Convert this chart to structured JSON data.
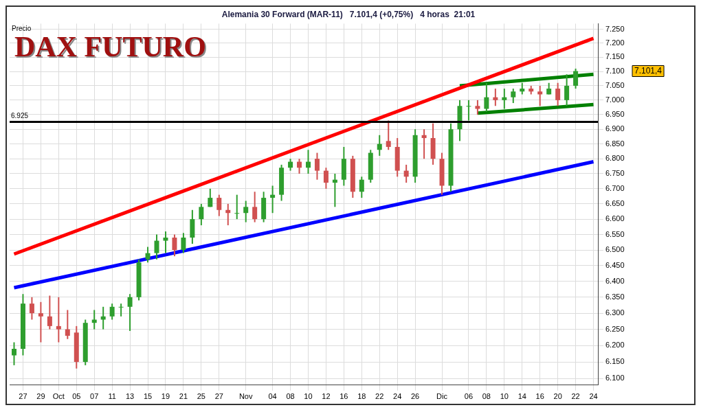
{
  "chart_data": {
    "type": "candlestick",
    "title": "Alemania 30 Forward (MAR-11)   7.101,4 (+0,75%)   4 horas  21:01",
    "subtitle": "DAX FUTURO",
    "ylabel": "Precio",
    "categories": [
      null,
      "27",
      null,
      "29",
      null,
      "Oct",
      null,
      "05",
      null,
      "07",
      null,
      "11",
      null,
      "13",
      null,
      "15",
      null,
      "19",
      null,
      "21",
      null,
      "25",
      null,
      "27",
      null,
      null,
      "Nov",
      null,
      null,
      "04",
      null,
      "08",
      null,
      "10",
      null,
      "12",
      null,
      "16",
      null,
      "18",
      null,
      "22",
      null,
      "24",
      null,
      "26",
      null,
      null,
      "Dic",
      null,
      null,
      "06",
      null,
      "08",
      null,
      "10",
      null,
      "14",
      null,
      "16",
      null,
      "20",
      null,
      "22",
      null,
      "24"
    ],
    "ohlc": [
      [
        6170,
        6210,
        6140,
        6190
      ],
      [
        6190,
        6360,
        6170,
        6330
      ],
      [
        6330,
        6350,
        6280,
        6300
      ],
      [
        6300,
        6335,
        6210,
        6290
      ],
      [
        6290,
        6355,
        6250,
        6260
      ],
      [
        6260,
        6350,
        6210,
        6250
      ],
      [
        6250,
        6310,
        6220,
        6230
      ],
      [
        6240,
        6260,
        6130,
        6150
      ],
      [
        6150,
        6280,
        6140,
        6270
      ],
      [
        6270,
        6310,
        6250,
        6280
      ],
      [
        6280,
        6320,
        6250,
        6290
      ],
      [
        6290,
        6330,
        6280,
        6320
      ],
      [
        6320,
        6330,
        6290,
        6320
      ],
      [
        6320,
        6360,
        6245,
        6350
      ],
      [
        6350,
        6470,
        6340,
        6460
      ],
      [
        6470,
        6510,
        6460,
        6490
      ],
      [
        6490,
        6550,
        6470,
        6530
      ],
      [
        6530,
        6560,
        6490,
        6540
      ],
      [
        6540,
        6550,
        6480,
        6500
      ],
      [
        6500,
        6555,
        6490,
        6540
      ],
      [
        6540,
        6630,
        6520,
        6600
      ],
      [
        6600,
        6650,
        6580,
        6640
      ],
      [
        6640,
        6700,
        6640,
        6670
      ],
      [
        6670,
        6680,
        6610,
        6630
      ],
      [
        6630,
        6650,
        6580,
        6620
      ],
      [
        6620,
        6680,
        6600,
        6620
      ],
      [
        6620,
        6660,
        6590,
        6640
      ],
      [
        6640,
        6690,
        6590,
        6600
      ],
      [
        6600,
        6690,
        6590,
        6670
      ],
      [
        6670,
        6710,
        6620,
        6680
      ],
      [
        6680,
        6780,
        6660,
        6770
      ],
      [
        6770,
        6800,
        6760,
        6790
      ],
      [
        6790,
        6800,
        6750,
        6770
      ],
      [
        6770,
        6830,
        6750,
        6790
      ],
      [
        6800,
        6820,
        6730,
        6760
      ],
      [
        6760,
        6770,
        6700,
        6720
      ],
      [
        6720,
        6750,
        6640,
        6730
      ],
      [
        6730,
        6840,
        6710,
        6800
      ],
      [
        6800,
        6810,
        6670,
        6690
      ],
      [
        6690,
        6740,
        6670,
        6730
      ],
      [
        6730,
        6830,
        6720,
        6820
      ],
      [
        6830,
        6880,
        6810,
        6850
      ],
      [
        6860,
        6930,
        6830,
        6840
      ],
      [
        6840,
        6870,
        6740,
        6760
      ],
      [
        6760,
        6780,
        6720,
        6740
      ],
      [
        6740,
        6900,
        6720,
        6880
      ],
      [
        6880,
        6900,
        6800,
        6870
      ],
      [
        6870,
        6920,
        6780,
        6800
      ],
      [
        6800,
        6820,
        6680,
        6710
      ],
      [
        6710,
        6920,
        6690,
        6900
      ],
      [
        6900,
        7000,
        6860,
        6980
      ],
      [
        6980,
        7000,
        6930,
        6980
      ],
      [
        6980,
        7000,
        6950,
        6970
      ],
      [
        6970,
        7060,
        6960,
        7010
      ],
      [
        7010,
        7040,
        6980,
        7000
      ],
      [
        7000,
        7040,
        6970,
        7010
      ],
      [
        7010,
        7040,
        6990,
        7030
      ],
      [
        7030,
        7060,
        7020,
        7040
      ],
      [
        7040,
        7050,
        7020,
        7030
      ],
      [
        7030,
        7050,
        6980,
        7020
      ],
      [
        7020,
        7060,
        7020,
        7040
      ],
      [
        7040,
        7060,
        6980,
        7000
      ],
      [
        7000,
        7090,
        6980,
        7050
      ],
      [
        7050,
        7110,
        7040,
        7101.4
      ],
      null,
      null
    ],
    "series": [
      {
        "type": "line",
        "color": "#ff0000",
        "values": [
          6487,
          null,
          null,
          null,
          null,
          null,
          null,
          null,
          null,
          null,
          null,
          null,
          null,
          null,
          null,
          null,
          null,
          null,
          null,
          null,
          null,
          null,
          null,
          null,
          null,
          null,
          null,
          null,
          null,
          null,
          null,
          null,
          null,
          null,
          null,
          null,
          null,
          null,
          null,
          null,
          null,
          null,
          null,
          null,
          null,
          null,
          null,
          null,
          null,
          null,
          null,
          null,
          null,
          null,
          null,
          null,
          null,
          null,
          null,
          null,
          null,
          null,
          null,
          null,
          null,
          7217
        ]
      },
      {
        "type": "line",
        "color": "#0000ff",
        "values": [
          6380,
          null,
          null,
          null,
          null,
          null,
          null,
          null,
          null,
          null,
          null,
          null,
          null,
          null,
          null,
          null,
          null,
          null,
          null,
          null,
          null,
          null,
          null,
          null,
          null,
          null,
          null,
          null,
          null,
          null,
          null,
          null,
          null,
          null,
          null,
          null,
          null,
          null,
          null,
          null,
          null,
          null,
          null,
          null,
          null,
          null,
          null,
          null,
          null,
          null,
          null,
          null,
          null,
          null,
          null,
          null,
          null,
          null,
          null,
          null,
          null,
          null,
          null,
          null,
          null,
          6790
        ]
      },
      {
        "type": "line",
        "color": "#008000",
        "values": [
          null,
          null,
          null,
          null,
          null,
          null,
          null,
          null,
          null,
          null,
          null,
          null,
          null,
          null,
          null,
          null,
          null,
          null,
          null,
          null,
          null,
          null,
          null,
          null,
          null,
          null,
          null,
          null,
          null,
          null,
          null,
          null,
          null,
          null,
          null,
          null,
          null,
          null,
          null,
          null,
          null,
          null,
          null,
          null,
          null,
          null,
          null,
          null,
          null,
          null,
          7050,
          null,
          null,
          null,
          null,
          null,
          null,
          null,
          null,
          null,
          null,
          null,
          null,
          null,
          null,
          7090
        ]
      },
      {
        "type": "line",
        "color": "#008000",
        "values": [
          null,
          null,
          null,
          null,
          null,
          null,
          null,
          null,
          null,
          null,
          null,
          null,
          null,
          null,
          null,
          null,
          null,
          null,
          null,
          null,
          null,
          null,
          null,
          null,
          null,
          null,
          null,
          null,
          null,
          null,
          null,
          null,
          null,
          null,
          null,
          null,
          null,
          null,
          null,
          null,
          null,
          null,
          null,
          null,
          null,
          null,
          null,
          null,
          null,
          null,
          null,
          null,
          6955,
          null,
          null,
          null,
          null,
          null,
          null,
          null,
          null,
          null,
          null,
          null,
          null,
          6985
        ]
      }
    ],
    "ref_lines": [
      {
        "axis": "y",
        "value": 6925,
        "label": "6.925",
        "color": "#000000"
      }
    ],
    "annotations": [
      "7.101,4"
    ],
    "log": true,
    "grid": true,
    "legend": false,
    "ylim": [
      6080,
      7270
    ],
    "yticks": [
      {
        "value": 6100,
        "label": "6.100"
      },
      {
        "value": 6150,
        "label": "6.150"
      },
      {
        "value": 6200,
        "label": "6.200"
      },
      {
        "value": 6250,
        "label": "6.250"
      },
      {
        "value": 6300,
        "label": "6.300"
      },
      {
        "value": 6350,
        "label": "6.350"
      },
      {
        "value": 6400,
        "label": "6.400"
      },
      {
        "value": 6450,
        "label": "6.450"
      },
      {
        "value": 6500,
        "label": "6.500"
      },
      {
        "value": 6550,
        "label": "6.550"
      },
      {
        "value": 6600,
        "label": "6.600"
      },
      {
        "value": 6650,
        "label": "6.650"
      },
      {
        "value": 6700,
        "label": "6.700"
      },
      {
        "value": 6750,
        "label": "6.750"
      },
      {
        "value": 6800,
        "label": "6.800"
      },
      {
        "value": 6850,
        "label": "6.850"
      },
      {
        "value": 6900,
        "label": "6.900"
      },
      {
        "value": 6950,
        "label": "6.950"
      },
      {
        "value": 7000,
        "label": "7.000"
      },
      {
        "value": 7050,
        "label": "7.050"
      },
      {
        "value": 7100,
        "label": "7.100"
      },
      {
        "value": 7150,
        "label": "7.150"
      },
      {
        "value": 7200,
        "label": "7.200"
      },
      {
        "value": 7250,
        "label": "7.250"
      }
    ]
  }
}
